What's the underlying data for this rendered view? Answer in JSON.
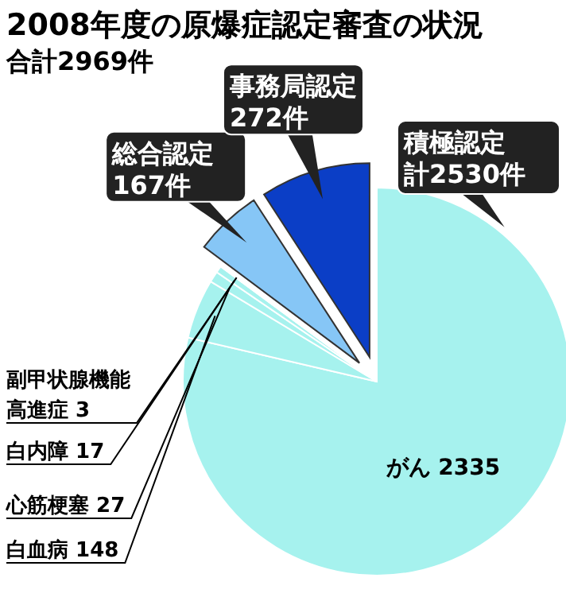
{
  "chart_data": {
    "type": "pie",
    "title": "2008年度の原爆症認定審査の状況",
    "subtitle": "合計2969件",
    "categories": [
      "がん",
      "白血病",
      "心筋梗塞",
      "白内障",
      "副甲状腺機能高進症",
      "総合認定",
      "事務局認定"
    ],
    "values": [
      2335,
      148,
      27,
      17,
      3,
      167,
      272
    ],
    "value_labels": [
      "2335",
      "148",
      "27",
      "17",
      "3",
      "167件",
      "272件"
    ],
    "colors": [
      "#a6f2ee",
      "#a6f2ee",
      "#a6f2ee",
      "#a6f2ee",
      "#a6f2ee",
      "#86c6f6",
      "#0b3ec6"
    ],
    "annotations": [
      "積極認定計2530件"
    ]
  }
}
